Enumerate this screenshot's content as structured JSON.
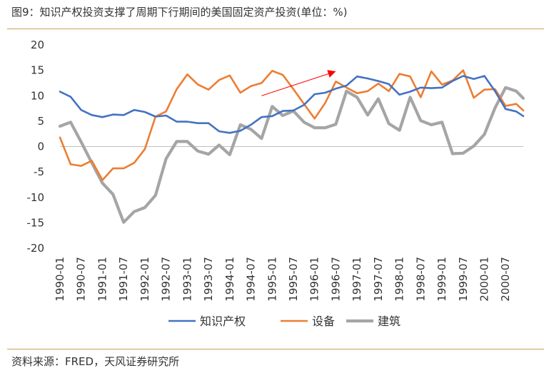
{
  "figure": {
    "title": "图9：知识产权投资支撑了周期下行期间的美国固定资产投资(单位：%)",
    "source": "资料来源：FRED，天风证券研究所"
  },
  "chart_data": {
    "type": "line",
    "title": "",
    "xlabel": "",
    "ylabel": "",
    "ylim": [
      -20,
      20
    ],
    "yticks": [
      -20,
      -15,
      -10,
      -5,
      0,
      5,
      10,
      15,
      20
    ],
    "grid": false,
    "legend_position": "bottom",
    "x_tick_labels": [
      "1990-01",
      "1990-07",
      "1991-01",
      "1991-07",
      "1992-01",
      "1992-07",
      "1993-01",
      "1993-07",
      "1994-01",
      "1994-07",
      "1995-01",
      "1995-07",
      "1996-01",
      "1996-07",
      "1997-01",
      "1997-07",
      "1998-01",
      "1998-07",
      "1999-01",
      "1999-07",
      "2000-01",
      "2000-07"
    ],
    "x": [
      "1990-01",
      "1990-04",
      "1990-07",
      "1990-10",
      "1991-01",
      "1991-04",
      "1991-07",
      "1991-10",
      "1992-01",
      "1992-04",
      "1992-07",
      "1992-10",
      "1993-01",
      "1993-04",
      "1993-07",
      "1993-10",
      "1994-01",
      "1994-04",
      "1994-07",
      "1994-10",
      "1995-01",
      "1995-04",
      "1995-07",
      "1995-10",
      "1996-01",
      "1996-04",
      "1996-07",
      "1996-10",
      "1997-01",
      "1997-04",
      "1997-07",
      "1997-10",
      "1998-01",
      "1998-04",
      "1998-07",
      "1998-10",
      "1999-01",
      "1999-04",
      "1999-07",
      "1999-10",
      "2000-01",
      "2000-04",
      "2000-07",
      "2000-10",
      "2000-12"
    ],
    "series": [
      {
        "name": "知识产权",
        "color": "#4472c4",
        "values": [
          10.8,
          9.8,
          7.2,
          6.2,
          5.8,
          6.3,
          6.2,
          7.2,
          6.8,
          5.9,
          6.1,
          4.9,
          4.9,
          4.6,
          4.6,
          3.0,
          2.7,
          3.1,
          4.3,
          5.8,
          6.0,
          7.0,
          7.1,
          8.2,
          10.3,
          10.6,
          11.4,
          12.0,
          13.8,
          13.4,
          12.9,
          12.3,
          10.2,
          10.8,
          11.6,
          11.5,
          11.6,
          12.9,
          13.9,
          13.3,
          13.9,
          10.9,
          7.4,
          6.9,
          6.0
        ]
      },
      {
        "name": "设备",
        "color": "#ed7d31",
        "values": [
          1.8,
          -3.5,
          -3.8,
          -2.8,
          -6.6,
          -4.3,
          -4.3,
          -3.2,
          -0.5,
          5.9,
          6.9,
          11.3,
          14.2,
          12.2,
          11.2,
          13.1,
          14.0,
          10.6,
          11.9,
          12.5,
          14.9,
          14.1,
          11.3,
          8.4,
          5.5,
          8.6,
          12.8,
          11.6,
          10.5,
          10.9,
          12.4,
          10.9,
          14.3,
          13.8,
          9.7,
          14.8,
          12.2,
          13.0,
          15.0,
          9.6,
          11.2,
          11.3,
          8.0,
          8.4,
          7.1
        ]
      },
      {
        "name": "建筑",
        "color": "#a5a5a5",
        "values": [
          4.0,
          4.8,
          0.9,
          -3.2,
          -7.2,
          -9.4,
          -14.9,
          -12.8,
          -12.0,
          -9.6,
          -2.4,
          1.0,
          1.0,
          -0.9,
          -1.5,
          0.3,
          -1.6,
          4.3,
          3.4,
          1.6,
          7.9,
          6.1,
          7.0,
          4.8,
          3.7,
          3.7,
          4.4,
          10.9,
          9.7,
          6.2,
          9.4,
          4.5,
          3.2,
          9.7,
          5.1,
          4.3,
          4.8,
          -1.4,
          -1.3,
          0.1,
          2.4,
          7.6,
          11.6,
          10.9,
          9.5
        ]
      }
    ],
    "annotations": [
      {
        "type": "arrow",
        "color": "#ff0000",
        "from": [
          "1994-10",
          10.0
        ],
        "to": [
          "1996-07",
          14.8
        ]
      }
    ]
  }
}
